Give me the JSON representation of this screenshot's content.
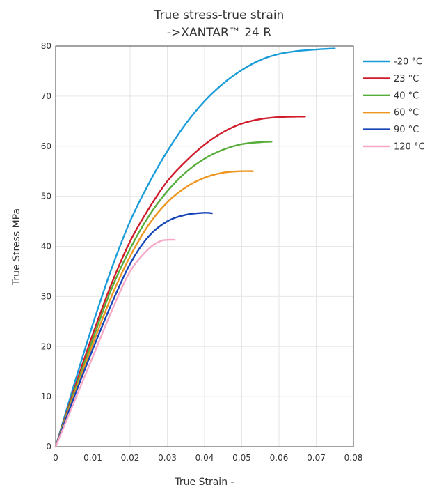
{
  "chart_data": {
    "type": "line",
    "title": [
      "True stress-true strain",
      "->XANTAR™ 24 R"
    ],
    "xlabel": "True Strain -",
    "ylabel": "True Stress MPa",
    "xlim": [
      0,
      0.08
    ],
    "ylim": [
      0,
      80
    ],
    "xticks": [
      "0",
      "0.01",
      "0.02",
      "0.03",
      "0.04",
      "0.05",
      "0.06",
      "0.07",
      "0.08"
    ],
    "yticks": [
      "0",
      "10",
      "20",
      "30",
      "40",
      "50",
      "60",
      "70",
      "80"
    ],
    "grid": true,
    "legend_position": "right",
    "series": [
      {
        "name": "-20 °C",
        "color": "#1a9cd8",
        "x": [
          0,
          0.005,
          0.01,
          0.015,
          0.02,
          0.025,
          0.03,
          0.035,
          0.04,
          0.045,
          0.05,
          0.055,
          0.06,
          0.065,
          0.07,
          0.075
        ],
        "y": [
          0,
          12.5,
          24.5,
          35.5,
          45,
          52.5,
          59,
          64.5,
          69,
          72.5,
          75.2,
          77.2,
          78.4,
          79.0,
          79.3,
          79.5
        ]
      },
      {
        "name": "23 °C",
        "color": "#d01c2a",
        "x": [
          0,
          0.005,
          0.01,
          0.015,
          0.02,
          0.025,
          0.03,
          0.035,
          0.04,
          0.045,
          0.05,
          0.055,
          0.06,
          0.065,
          0.067
        ],
        "y": [
          0,
          11.5,
          22.5,
          32.5,
          41,
          47.5,
          53,
          57,
          60.3,
          62.8,
          64.5,
          65.4,
          65.8,
          65.9,
          65.9
        ]
      },
      {
        "name": "40 °C",
        "color": "#56ad3a",
        "x": [
          0,
          0.005,
          0.01,
          0.015,
          0.02,
          0.025,
          0.03,
          0.035,
          0.04,
          0.045,
          0.05,
          0.055,
          0.058
        ],
        "y": [
          0,
          11,
          21.5,
          31.5,
          39.5,
          46,
          51,
          54.8,
          57.5,
          59.3,
          60.4,
          60.8,
          60.9
        ]
      },
      {
        "name": "60 °C",
        "color": "#ee951f",
        "x": [
          0,
          0.005,
          0.01,
          0.015,
          0.02,
          0.025,
          0.03,
          0.035,
          0.04,
          0.045,
          0.05,
          0.053
        ],
        "y": [
          0,
          10.5,
          20.5,
          30,
          38,
          44.3,
          48.8,
          51.8,
          53.7,
          54.7,
          55,
          55
        ]
      },
      {
        "name": "90 °C",
        "color": "#1545b8",
        "x": [
          0,
          0.005,
          0.01,
          0.015,
          0.02,
          0.025,
          0.03,
          0.035,
          0.04,
          0.042
        ],
        "y": [
          0,
          10,
          19.5,
          28.5,
          36.5,
          42,
          45,
          46.3,
          46.7,
          46.6
        ]
      },
      {
        "name": "120 °C",
        "color": "#f7a8c8",
        "x": [
          0,
          0.005,
          0.01,
          0.015,
          0.02,
          0.025,
          0.028,
          0.03,
          0.032
        ],
        "y": [
          0,
          9,
          18,
          27,
          35,
          39.5,
          41,
          41.3,
          41.3
        ]
      }
    ]
  }
}
